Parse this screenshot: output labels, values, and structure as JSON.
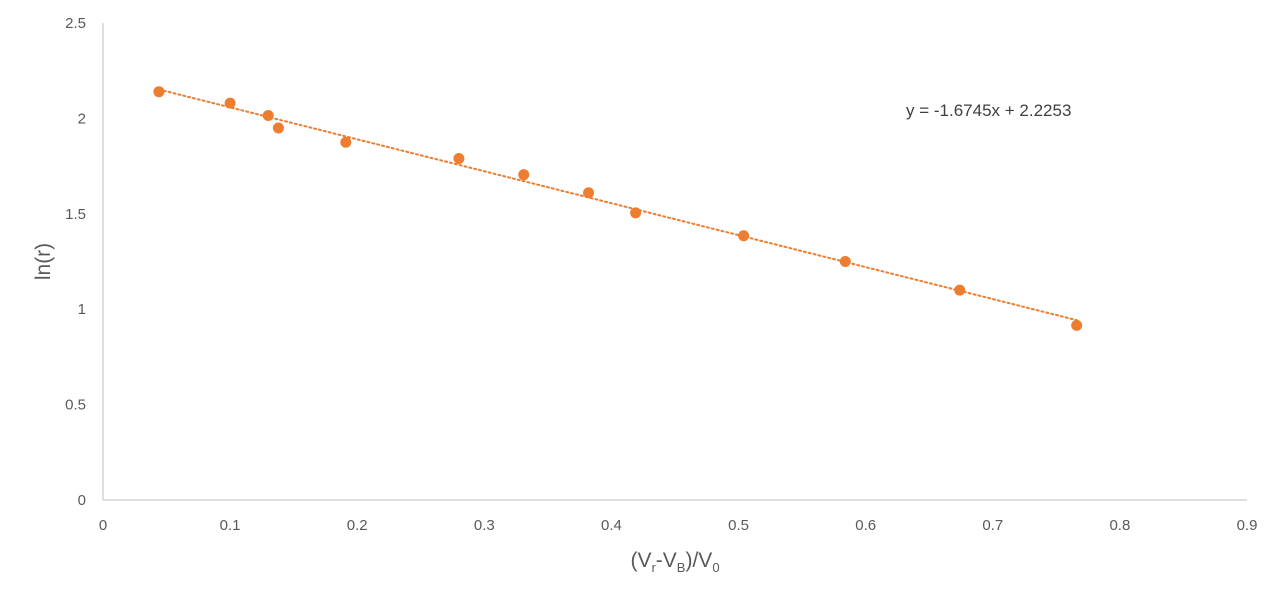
{
  "chart_data": {
    "type": "scatter",
    "title": "",
    "xlabel_parts": [
      {
        "text": "(V",
        "sub": false
      },
      {
        "text": "r",
        "sub": true
      },
      {
        "text": "-V",
        "sub": false
      },
      {
        "text": "B",
        "sub": true
      },
      {
        "text": ")/V",
        "sub": false
      },
      {
        "text": "0",
        "sub": true
      }
    ],
    "ylabel": "ln(r)",
    "xlim": [
      0,
      0.9
    ],
    "ylim": [
      0,
      2.5
    ],
    "xticks": [
      "0",
      "0.1",
      "0.2",
      "0.3",
      "0.4",
      "0.5",
      "0.6",
      "0.7",
      "0.8",
      "0.9"
    ],
    "yticks": [
      "0",
      "0.5",
      "1",
      "1.5",
      "2",
      "2.5"
    ],
    "grid": false,
    "legend": "none",
    "marker_color": "#ED7D31",
    "points": [
      {
        "x": 0.044,
        "y": 2.14
      },
      {
        "x": 0.1,
        "y": 2.08
      },
      {
        "x": 0.13,
        "y": 2.015
      },
      {
        "x": 0.138,
        "y": 1.95
      },
      {
        "x": 0.191,
        "y": 1.875
      },
      {
        "x": 0.28,
        "y": 1.79
      },
      {
        "x": 0.331,
        "y": 1.705
      },
      {
        "x": 0.382,
        "y": 1.61
      },
      {
        "x": 0.419,
        "y": 1.505
      },
      {
        "x": 0.504,
        "y": 1.385
      },
      {
        "x": 0.584,
        "y": 1.25
      },
      {
        "x": 0.674,
        "y": 1.1
      },
      {
        "x": 0.766,
        "y": 0.915
      }
    ],
    "trendline": {
      "type": "linear",
      "slope": -1.6745,
      "intercept": 2.2253,
      "x_range": [
        0.044,
        0.766
      ],
      "style": "dotted",
      "equation_label": "y = -1.6745x + 2.2253"
    }
  }
}
